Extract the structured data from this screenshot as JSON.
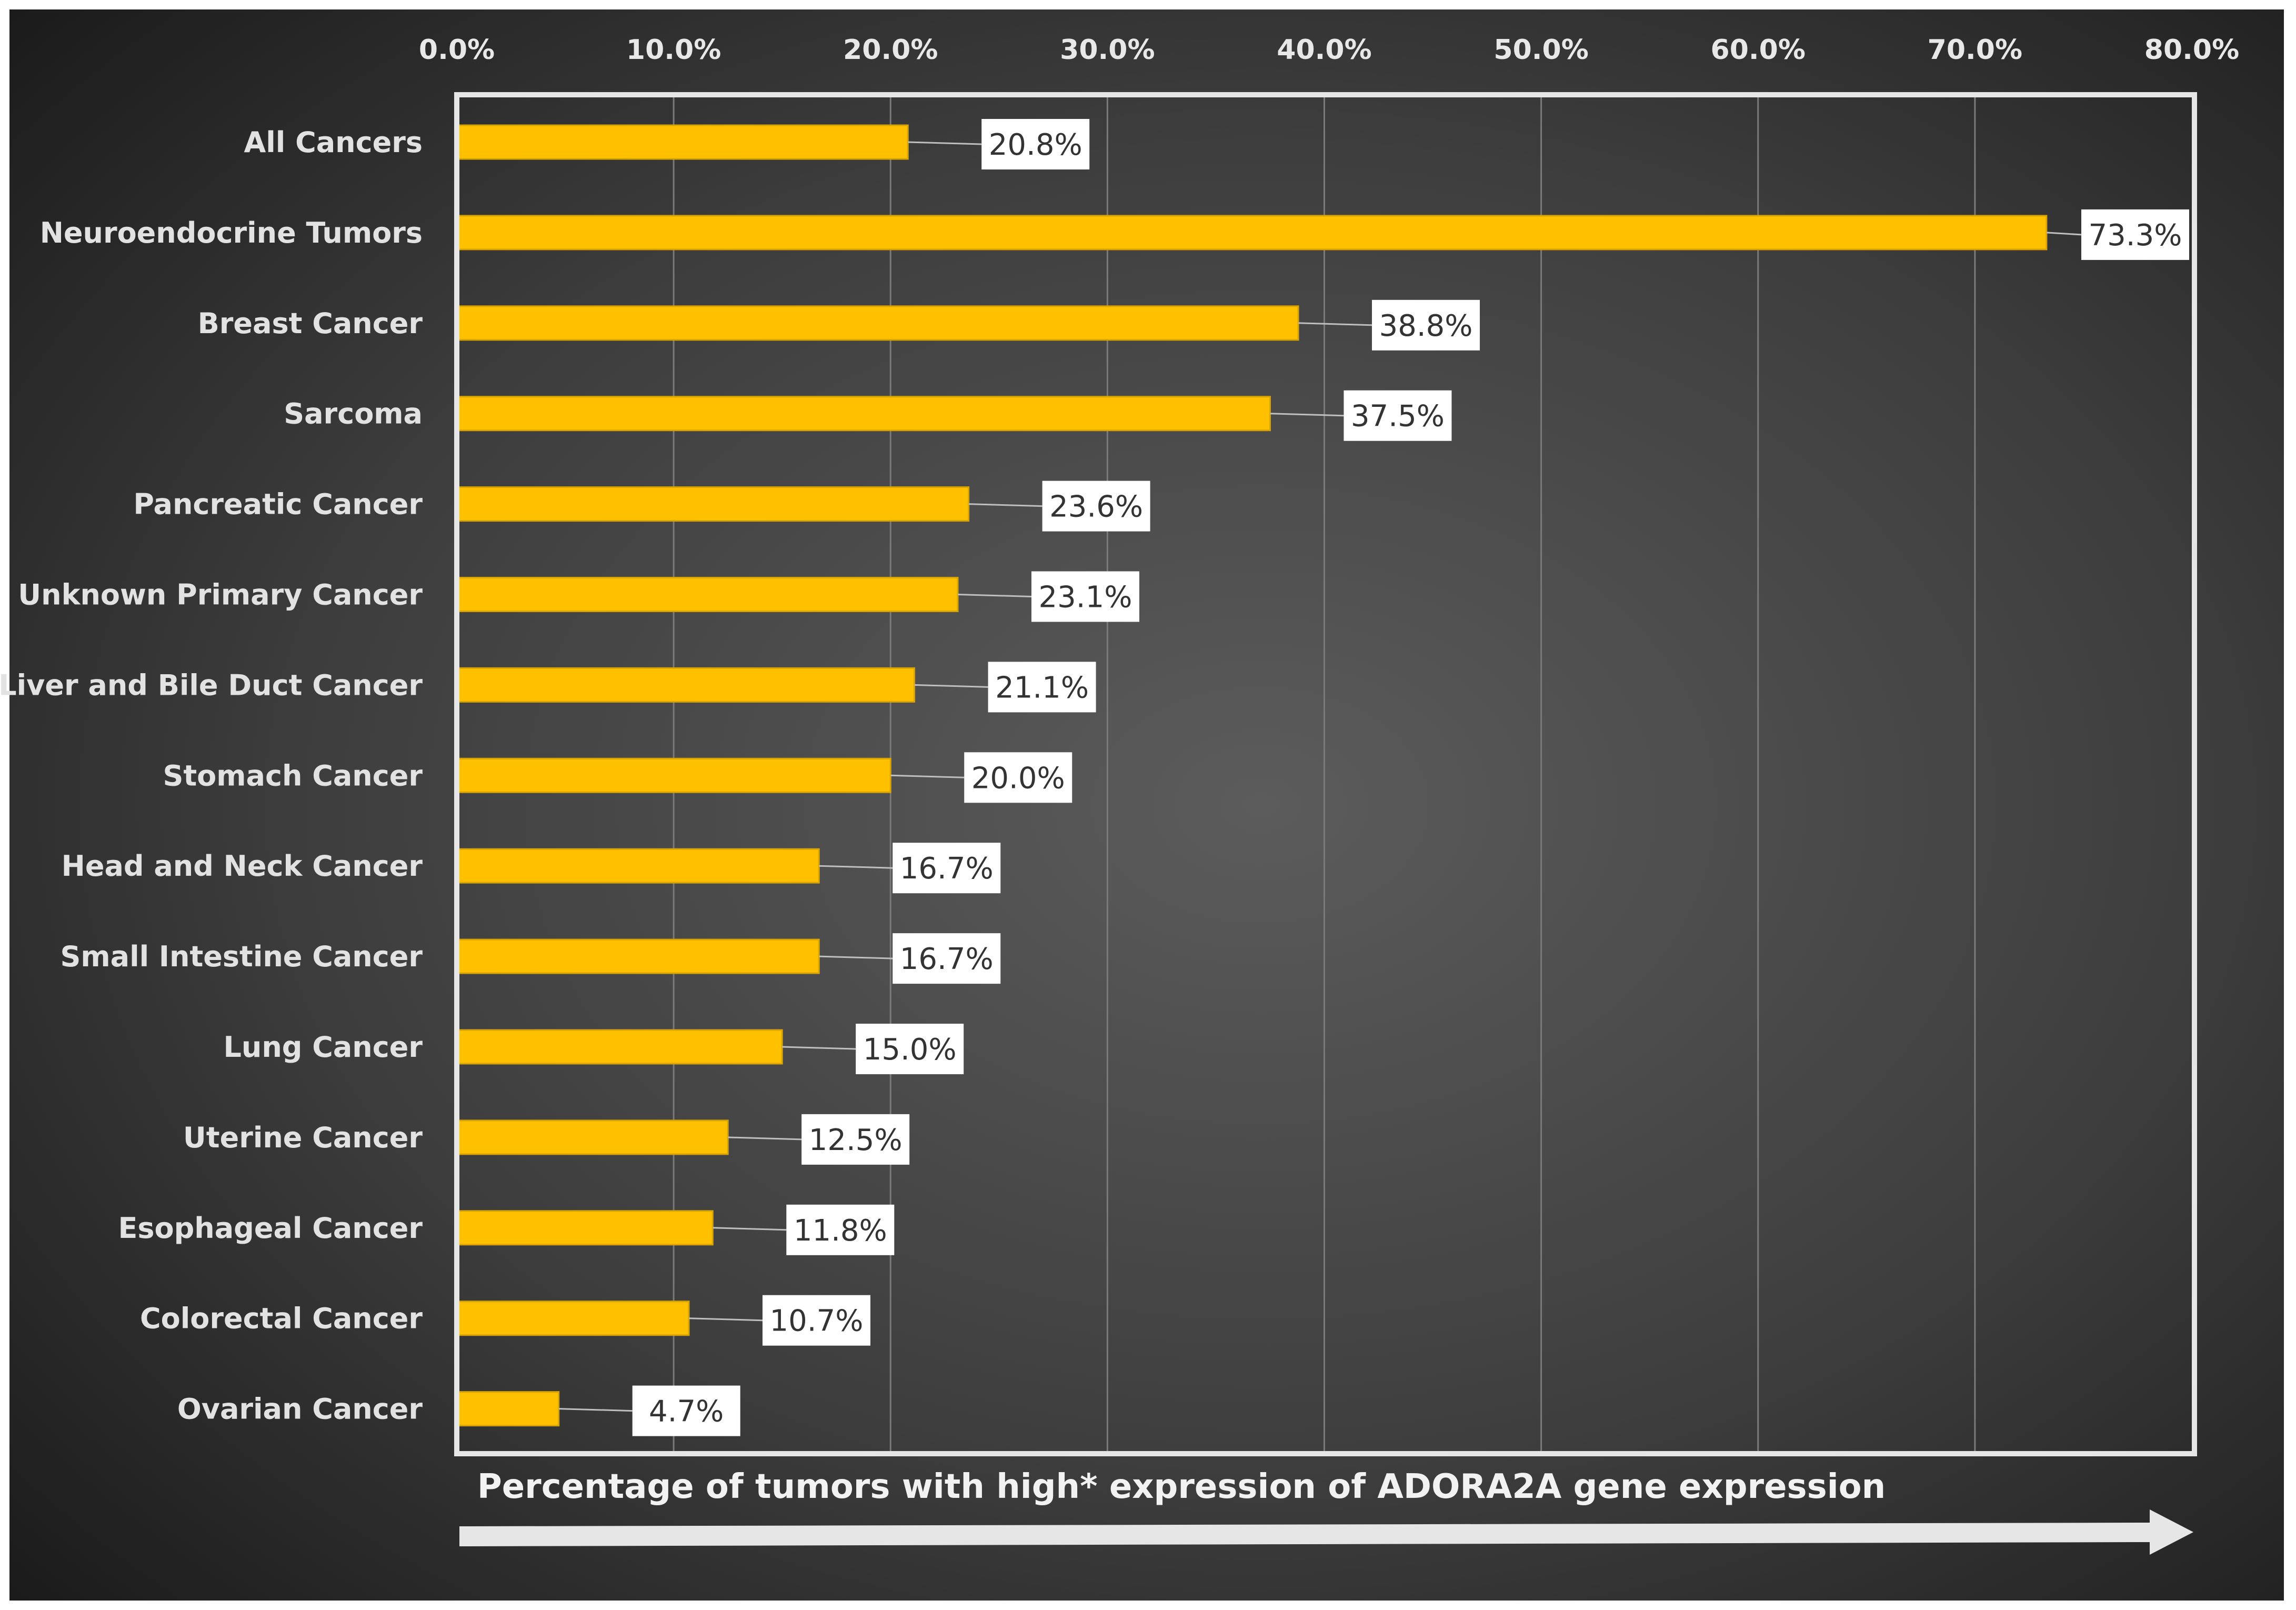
{
  "chart_data": {
    "type": "bar",
    "orientation": "horizontal",
    "title": "",
    "xlabel": "Percentage of tumors with high* expression of ADORA2A gene expression",
    "ylabel": "",
    "xlim": [
      0,
      80
    ],
    "x_ticks": [
      "0.0%",
      "10.0%",
      "20.0%",
      "30.0%",
      "40.0%",
      "50.0%",
      "60.0%",
      "70.0%",
      "80.0%"
    ],
    "x_axis_position": "top",
    "grid": true,
    "legend": "none",
    "categories": [
      "All Cancers",
      "Neuroendocrine Tumors",
      "Breast Cancer",
      "Sarcoma",
      "Pancreatic Cancer",
      "Unknown Primary Cancer",
      "Liver and Bile Duct Cancer",
      "Stomach Cancer",
      "Head and Neck Cancer",
      "Small Intestine Cancer",
      "Lung Cancer",
      "Uterine Cancer",
      "Esophageal Cancer",
      "Colorectal Cancer",
      "Ovarian Cancer"
    ],
    "values": [
      20.8,
      73.3,
      38.8,
      37.5,
      23.6,
      23.1,
      21.1,
      20.0,
      16.7,
      16.7,
      15.0,
      12.5,
      11.8,
      10.7,
      4.7
    ],
    "data_labels": [
      "20.8%",
      "73.3%",
      "38.8%",
      "37.5%",
      "23.6%",
      "23.1%",
      "21.1%",
      "20.0%",
      "16.7%",
      "16.7%",
      "15.0%",
      "12.5%",
      "11.8%",
      "10.7%",
      "4.7%"
    ]
  },
  "colors": {
    "bar": "#FFC000",
    "bar_edge": "#D9A400",
    "background_center": "#5a5a5a",
    "background_edge": "#1c1c1c",
    "gridline": "#7a7a7a",
    "frame": "#e6e6e6",
    "label_box": "#ffffff",
    "leader_line": "#bfbfbf",
    "arrow": "#e6e6e6"
  }
}
